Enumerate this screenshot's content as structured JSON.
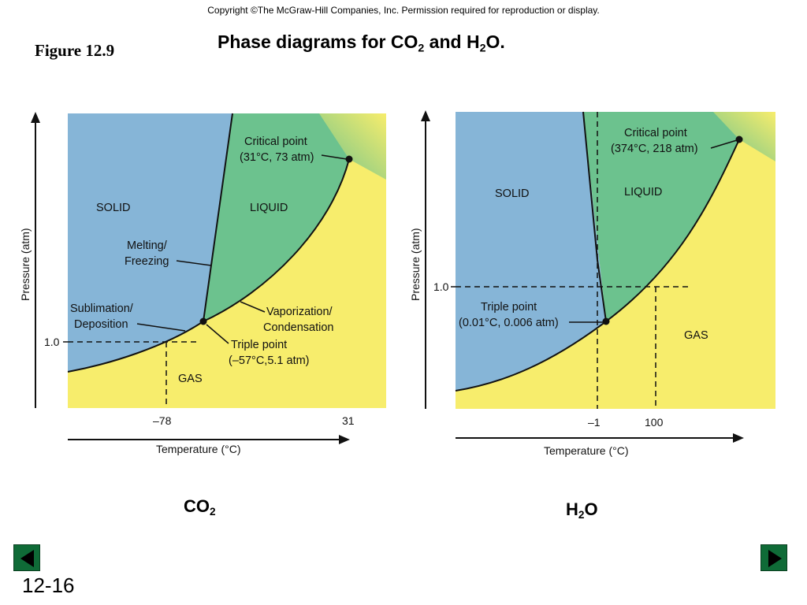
{
  "header": {
    "copyright": "Copyright ©The McGraw-Hill Companies, Inc.  Permission required for reproduction or display.",
    "figure_label": "Figure 12.9",
    "title_part1": "Phase diagrams for CO",
    "title_sub1": "2",
    "title_part2": " and H",
    "title_sub2": "2",
    "title_part3": "O."
  },
  "colors": {
    "solid": "#86b5d7",
    "liquid": "#6cc28e",
    "gas": "#f7ed6c"
  },
  "co2": {
    "solid_label": "SOLID",
    "liquid_label": "LIQUID",
    "gas_label": "GAS",
    "critical_label_1": "Critical point",
    "critical_label_2": "(31°C, 73 atm)",
    "melting_label_1": "Melting/",
    "melting_label_2": "Freezing",
    "sublimation_label_1": "Sublimation/",
    "sublimation_label_2": "Deposition",
    "vaporization_label_1": "Vaporization/",
    "vaporization_label_2": "Condensation",
    "triple_label_1": "Triple point",
    "triple_label_2": "(–57°C,5.1 atm)",
    "y_tick": "1.0",
    "x_tick_1": "–78",
    "x_tick_2": "31",
    "y_axis_title": "Pressure (atm)",
    "x_axis_title": "Temperature (°C)",
    "caption_main": "CO",
    "caption_sub": "2"
  },
  "h2o": {
    "solid_label": "SOLID",
    "liquid_label": "LIQUID",
    "gas_label": "GAS",
    "critical_label_1": "Critical point",
    "critical_label_2": "(374°C, 218 atm)",
    "triple_label_1": "Triple point",
    "triple_label_2": "(0.01°C, 0.006 atm)",
    "y_tick": "1.0",
    "x_tick_1": "–1",
    "x_tick_2": "100",
    "y_axis_title": "Pressure (atm)",
    "x_axis_title": "Temperature (°C)",
    "caption_main": "H",
    "caption_sub": "2",
    "caption_end": "O"
  },
  "footer": {
    "slide_number": "12-16",
    "prev_icon": "triangle-left-icon",
    "next_icon": "triangle-right-icon"
  }
}
